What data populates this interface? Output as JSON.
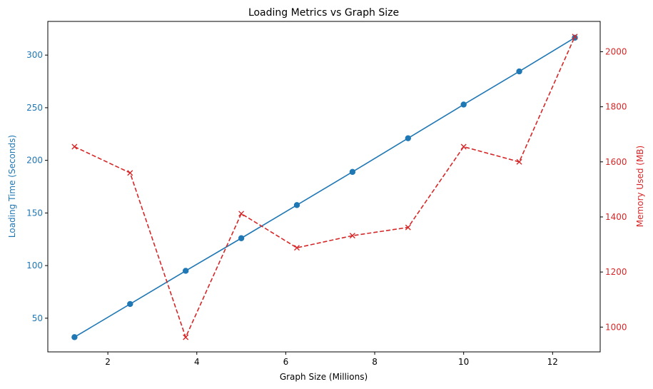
{
  "chart_data": {
    "type": "line",
    "title": "Loading Metrics vs Graph Size",
    "xlabel": "Graph Size (Millions)",
    "ylabel_left": "Loading Time (Seconds)",
    "ylabel_right": "Memory Used (MB)",
    "xlim": [
      0.65,
      13.07
    ],
    "ylim_left": [
      18,
      332
    ],
    "ylim_right": [
      910,
      2110
    ],
    "x_ticks": [
      2,
      4,
      6,
      8,
      10,
      12
    ],
    "y_left_ticks": [
      50,
      100,
      150,
      200,
      250,
      300
    ],
    "y_right_ticks": [
      1000,
      1200,
      1400,
      1600,
      1800,
      2000
    ],
    "grid": false,
    "x": [
      1.25,
      2.5,
      3.75,
      5.0,
      6.25,
      7.5,
      8.75,
      10.0,
      11.25,
      12.5
    ],
    "series": [
      {
        "axis": "left",
        "color": "#1f77b4",
        "linestyle": "solid",
        "marker": "circle",
        "values": [
          32,
          63.5,
          95,
          126,
          157.5,
          189,
          221,
          253,
          284.5,
          316.5
        ]
      },
      {
        "axis": "right",
        "color": "#d62728",
        "linestyle": "dashed",
        "marker": "x",
        "values": [
          1655,
          1560,
          963,
          1412,
          1288,
          1332,
          1362,
          1655,
          1600,
          2055
        ]
      }
    ]
  }
}
